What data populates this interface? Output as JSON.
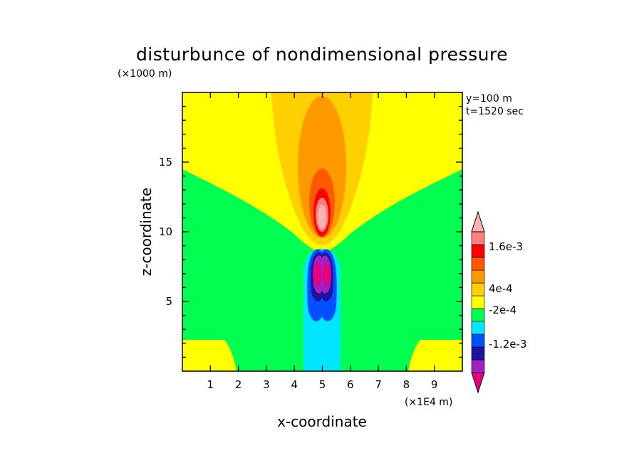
{
  "chart_data": {
    "type": "heatmap",
    "title": "disturbunce of nondimensional pressure",
    "xlabel": "x-coordinate",
    "ylabel": "z-coordinate",
    "x_unit": "(×1E4 m)",
    "z_unit": "(×1000 m)",
    "annotations": [
      "y=100 m",
      "t=1520 sec"
    ],
    "xlim": [
      0,
      10
    ],
    "zlim": [
      0,
      20
    ],
    "x_ticks": [
      "1",
      "2",
      "3",
      "4",
      "5",
      "6",
      "7",
      "8",
      "9"
    ],
    "z_ticks": [
      "5",
      "10",
      "15"
    ],
    "colorbar": {
      "levels": [
        {
          "color": "#e6007e"
        },
        {
          "color": "#a020c0"
        },
        {
          "color": "#1e14a0"
        },
        {
          "color": "#0050ff"
        },
        {
          "color": "#00e6ff"
        },
        {
          "color": "#00ff50"
        },
        {
          "color": "#ffff00"
        },
        {
          "color": "#ffd000"
        },
        {
          "color": "#ff9900"
        },
        {
          "color": "#ff5a00"
        },
        {
          "color": "#ff0000"
        },
        {
          "color": "#ff8080"
        },
        {
          "color": "#ffb0b0"
        }
      ],
      "labels": [
        "1.6e-3",
        "4e-4",
        "-2e-4",
        "-1.2e-3"
      ]
    },
    "field_description_colors": {
      "background": "#00ff50",
      "positive_low": "#ffff00",
      "positive_mid": "#ffd000",
      "positive_high": "#ff9900",
      "positive_peak": "#ff0000",
      "negative_low": "#00e6ff",
      "negative_mid": "#0050ff",
      "negative_peak": "#e6007e"
    }
  }
}
